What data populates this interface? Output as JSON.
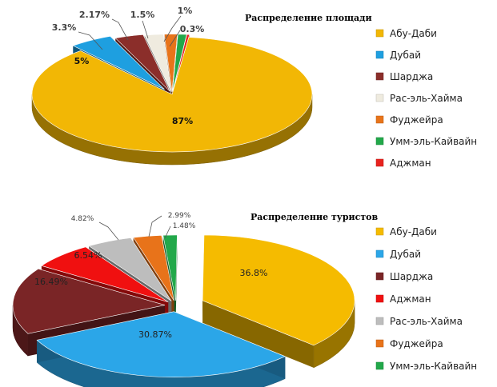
{
  "chart_data": [
    {
      "type": "pie",
      "title": "Распределение площади",
      "labels": [
        "Абу-Даби",
        "Дубай",
        "Шарджа",
        "Рас-эль-Хайма",
        "Фуджейра",
        "Умм-эль-Кайвайн",
        "Аджман"
      ],
      "values": [
        87,
        5,
        3.3,
        2.17,
        1.5,
        1,
        0.3
      ],
      "value_labels": [
        "87%",
        "5%",
        "3.3%",
        "2.17%",
        "1.5%",
        "1%",
        "0.3%"
      ],
      "colors": [
        "#F2B705",
        "#1E9FE0",
        "#8B2E2A",
        "#EFEBDF",
        "#E8741A",
        "#22A84A",
        "#E8231F"
      ],
      "legend": "right"
    },
    {
      "type": "pie",
      "title": "Распределение туристов",
      "labels": [
        "Абу-Даби",
        "Дубай",
        "Шарджа",
        "Аджман",
        "Рас-эль-Хайма",
        "Фуджейра",
        "Умм-эль-Кайвайн"
      ],
      "values": [
        36.8,
        30.87,
        16.49,
        6.54,
        4.82,
        2.99,
        1.48
      ],
      "value_labels": [
        "36.8%",
        "30.87%",
        "16.49%",
        "6.54%",
        "4.82%",
        "2.99%",
        "1.48%"
      ],
      "colors": [
        "#F5BB00",
        "#2BA6E8",
        "#7A2526",
        "#F01010",
        "#BDBDBD",
        "#E8731A",
        "#22A84A"
      ],
      "legend": "right"
    }
  ]
}
